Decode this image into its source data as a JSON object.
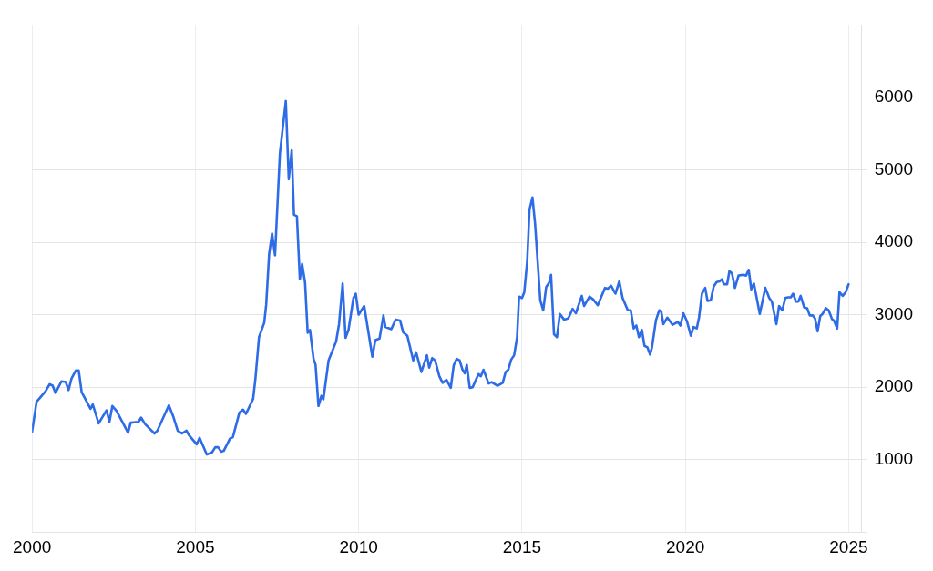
{
  "chart_data": {
    "type": "line",
    "x": [
      2000.0,
      2000.14,
      2000.41,
      2000.54,
      2000.63,
      2000.72,
      2000.9,
      2001.03,
      2001.12,
      2001.21,
      2001.34,
      2001.43,
      2001.52,
      2001.79,
      2001.86,
      2002.04,
      2002.28,
      2002.37,
      2002.46,
      2002.59,
      2002.94,
      2003.02,
      2003.26,
      2003.34,
      2003.46,
      2003.75,
      2003.84,
      2004.19,
      2004.32,
      2004.46,
      2004.59,
      2004.73,
      2004.8,
      2005.04,
      2005.13,
      2005.35,
      2005.51,
      2005.61,
      2005.7,
      2005.79,
      2005.87,
      2006.06,
      2006.15,
      2006.35,
      2006.46,
      2006.55,
      2006.77,
      2006.84,
      2006.95,
      2007.11,
      2007.17,
      2007.26,
      2007.35,
      2007.44,
      2007.59,
      2007.77,
      2007.86,
      2007.95,
      2008.02,
      2008.11,
      2008.2,
      2008.27,
      2008.36,
      2008.44,
      2008.51,
      2008.62,
      2008.68,
      2008.77,
      2008.86,
      2008.92,
      2009.08,
      2009.31,
      2009.4,
      2009.51,
      2009.6,
      2009.69,
      2009.84,
      2009.91,
      2010.0,
      2010.17,
      2010.42,
      2010.51,
      2010.64,
      2010.76,
      2010.82,
      2011.0,
      2011.13,
      2011.27,
      2011.36,
      2011.49,
      2011.67,
      2011.76,
      2011.92,
      2012.09,
      2012.16,
      2012.25,
      2012.34,
      2012.47,
      2012.57,
      2012.69,
      2012.82,
      2012.91,
      2013.0,
      2013.09,
      2013.18,
      2013.25,
      2013.31,
      2013.4,
      2013.49,
      2013.67,
      2013.74,
      2013.82,
      2013.98,
      2014.07,
      2014.25,
      2014.41,
      2014.5,
      2014.58,
      2014.67,
      2014.76,
      2014.85,
      2014.91,
      2015.0,
      2015.07,
      2015.16,
      2015.23,
      2015.32,
      2015.4,
      2015.56,
      2015.65,
      2015.74,
      2015.83,
      2015.89,
      2015.98,
      2016.07,
      2016.16,
      2016.29,
      2016.42,
      2016.55,
      2016.65,
      2016.83,
      2016.9,
      2017.07,
      2017.18,
      2017.32,
      2017.54,
      2017.63,
      2017.73,
      2017.86,
      2017.98,
      2018.08,
      2018.24,
      2018.33,
      2018.42,
      2018.5,
      2018.58,
      2018.67,
      2018.75,
      2018.84,
      2018.92,
      2018.98,
      2019.1,
      2019.2,
      2019.26,
      2019.33,
      2019.45,
      2019.61,
      2019.77,
      2019.85,
      2019.94,
      2020.05,
      2020.17,
      2020.25,
      2020.35,
      2020.42,
      2020.51,
      2020.61,
      2020.68,
      2020.78,
      2020.87,
      2020.96,
      2021.05,
      2021.12,
      2021.18,
      2021.28,
      2021.35,
      2021.43,
      2021.52,
      2021.63,
      2021.77,
      2021.86,
      2021.94,
      2022.02,
      2022.1,
      2022.28,
      2022.45,
      2022.57,
      2022.65,
      2022.79,
      2022.87,
      2022.97,
      2023.06,
      2023.14,
      2023.23,
      2023.3,
      2023.39,
      2023.46,
      2023.53,
      2023.64,
      2023.73,
      2023.81,
      2023.9,
      2023.97,
      2024.05,
      2024.13,
      2024.2,
      2024.3,
      2024.39,
      2024.49,
      2024.55,
      2024.65,
      2024.72,
      2024.82,
      2024.91,
      2025.0
    ],
    "series": [
      {
        "color": "#2e6be6",
        "values": [
          1380,
          1800,
          1940,
          2040,
          2020,
          1920,
          2080,
          2070,
          1960,
          2120,
          2230,
          2230,
          1930,
          1700,
          1760,
          1500,
          1680,
          1520,
          1740,
          1670,
          1370,
          1510,
          1520,
          1580,
          1490,
          1360,
          1400,
          1750,
          1600,
          1400,
          1360,
          1400,
          1340,
          1210,
          1300,
          1070,
          1100,
          1170,
          1170,
          1110,
          1120,
          1290,
          1310,
          1650,
          1690,
          1630,
          1840,
          2120,
          2690,
          2890,
          3140,
          3840,
          4120,
          3820,
          5230,
          5950,
          4870,
          5270,
          4380,
          4360,
          3490,
          3700,
          3440,
          2750,
          2790,
          2390,
          2310,
          1740,
          1880,
          1830,
          2370,
          2630,
          2870,
          3430,
          2680,
          2790,
          3230,
          3290,
          3000,
          3120,
          2420,
          2650,
          2670,
          2990,
          2830,
          2800,
          2930,
          2920,
          2760,
          2710,
          2370,
          2480,
          2210,
          2440,
          2270,
          2400,
          2370,
          2150,
          2060,
          2100,
          1990,
          2300,
          2390,
          2370,
          2240,
          2190,
          2310,
          1990,
          2000,
          2180,
          2150,
          2240,
          2050,
          2070,
          2020,
          2060,
          2210,
          2240,
          2380,
          2440,
          2690,
          3250,
          3230,
          3310,
          3740,
          4450,
          4620,
          4260,
          3200,
          3060,
          3380,
          3440,
          3550,
          2730,
          2690,
          3010,
          2930,
          2950,
          3080,
          3020,
          3260,
          3120,
          3250,
          3210,
          3130,
          3370,
          3360,
          3400,
          3290,
          3460,
          3230,
          3060,
          3060,
          2810,
          2850,
          2690,
          2790,
          2570,
          2550,
          2450,
          2550,
          2920,
          3060,
          3050,
          2870,
          2960,
          2860,
          2900,
          2850,
          3020,
          2910,
          2710,
          2830,
          2810,
          2960,
          3290,
          3370,
          3190,
          3200,
          3390,
          3450,
          3460,
          3490,
          3420,
          3420,
          3600,
          3570,
          3370,
          3540,
          3550,
          3540,
          3620,
          3350,
          3430,
          3010,
          3370,
          3230,
          3180,
          2870,
          3120,
          3060,
          3230,
          3240,
          3240,
          3290,
          3180,
          3180,
          3260,
          3100,
          3090,
          2990,
          2990,
          2950,
          2770,
          2980,
          3010,
          3090,
          3060,
          2940,
          2920,
          2810,
          3310,
          3260,
          3310,
          3420
        ]
      }
    ],
    "xlim": [
      2000,
      2025.4
    ],
    "xticks": [
      2000,
      2005,
      2010,
      2015,
      2020,
      2025
    ],
    "ylim": [
      0,
      7000
    ],
    "yticks": [
      {
        "value": 0,
        "label": null
      },
      1000,
      2000,
      3000,
      4000,
      5000,
      6000,
      {
        "value": 7000,
        "label": null
      }
    ],
    "grid": true,
    "legend": false,
    "marker": "none",
    "line_style": "solid"
  }
}
